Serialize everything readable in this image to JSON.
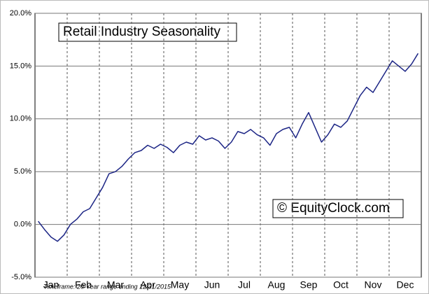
{
  "chart_data": {
    "type": "line",
    "title": "Retail Industry Seasonality",
    "annotation": "© EquityClock.com",
    "footnote": "Timeframe: 20-Year range ending 12/31/2015",
    "categories": [
      null,
      null,
      "Jan",
      null,
      null,
      null,
      null,
      "Feb",
      null,
      null,
      null,
      null,
      "Mar",
      null,
      null,
      null,
      null,
      "Apr",
      null,
      null,
      null,
      null,
      "May",
      null,
      null,
      null,
      null,
      "Jun",
      null,
      null,
      null,
      null,
      "Jul",
      null,
      null,
      null,
      null,
      "Aug",
      null,
      null,
      null,
      null,
      "Sep",
      null,
      null,
      null,
      null,
      "Oct",
      null,
      null,
      null,
      null,
      "Nov",
      null,
      null,
      null,
      null,
      "Dec",
      null,
      null
    ],
    "values": [
      0.3,
      -0.5,
      -1.2,
      -1.6,
      -1.0,
      0.0,
      0.5,
      1.2,
      1.5,
      2.5,
      3.5,
      4.8,
      5.0,
      5.5,
      6.2,
      6.8,
      7.0,
      7.5,
      7.2,
      7.6,
      7.3,
      6.8,
      7.5,
      7.8,
      7.6,
      8.4,
      8.0,
      8.2,
      7.9,
      7.2,
      7.8,
      8.8,
      8.6,
      9.0,
      8.5,
      8.2,
      7.5,
      8.6,
      9.0,
      9.2,
      8.2,
      9.5,
      10.6,
      9.2,
      7.8,
      8.5,
      9.5,
      9.2,
      9.8,
      11.0,
      12.2,
      13.0,
      12.5,
      13.5,
      14.5,
      15.5,
      15.0,
      14.5,
      15.2,
      16.2
    ],
    "color": "#1c2585",
    "ylim": [
      -5,
      20
    ],
    "yticks": [
      {
        "value": -5,
        "label": "-5.0%"
      },
      {
        "value": 0,
        "label": "0.0%"
      },
      {
        "value": 5,
        "label": "5.0%"
      },
      {
        "value": 10,
        "label": "10.0%"
      },
      {
        "value": 15,
        "label": "15.0%"
      },
      {
        "value": 20,
        "label": "20.0%"
      }
    ],
    "grid": true
  }
}
